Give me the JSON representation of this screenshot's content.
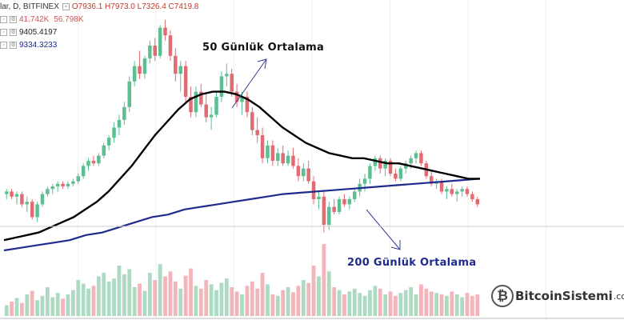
{
  "header": {
    "symbol": "lar, D, BITFINEX",
    "ohlc": "O7936.1  H7973.0  L7326.4  C7419.8",
    "volume_a": "41.742K",
    "volume_b": "56.798K",
    "ma50_value": "9405.4197",
    "ma200_value": "9334.3233"
  },
  "annotations": {
    "ma50_label": "50 Günlük Ortalama",
    "ma200_label": "200 Günlük Ortalama"
  },
  "logo": {
    "text": "BitcoinSistemi",
    "suffix": ".com"
  },
  "colors": {
    "up": "#5bbf92",
    "down": "#e06b73",
    "up_volume": "#9ed4b9",
    "down_volume": "#f0a8ae",
    "ma50": "#000000",
    "ma200": "#1f2b8c",
    "arrow": "#3a3f8f"
  },
  "chart_data": {
    "type": "candlestick",
    "candles": [
      [
        0.32,
        0.34,
        0.3,
        0.33
      ],
      [
        0.33,
        0.34,
        0.3,
        0.31
      ],
      [
        0.31,
        0.33,
        0.28,
        0.32
      ],
      [
        0.32,
        0.33,
        0.27,
        0.28
      ],
      [
        0.28,
        0.31,
        0.25,
        0.29
      ],
      [
        0.29,
        0.3,
        0.22,
        0.23
      ],
      [
        0.23,
        0.29,
        0.21,
        0.28
      ],
      [
        0.28,
        0.33,
        0.27,
        0.32
      ],
      [
        0.32,
        0.35,
        0.31,
        0.34
      ],
      [
        0.34,
        0.36,
        0.32,
        0.35
      ],
      [
        0.35,
        0.37,
        0.33,
        0.36
      ],
      [
        0.36,
        0.37,
        0.34,
        0.35
      ],
      [
        0.35,
        0.37,
        0.34,
        0.36
      ],
      [
        0.36,
        0.38,
        0.35,
        0.37
      ],
      [
        0.37,
        0.4,
        0.36,
        0.39
      ],
      [
        0.39,
        0.44,
        0.38,
        0.43
      ],
      [
        0.43,
        0.46,
        0.41,
        0.45
      ],
      [
        0.45,
        0.47,
        0.43,
        0.44
      ],
      [
        0.44,
        0.48,
        0.43,
        0.47
      ],
      [
        0.47,
        0.52,
        0.46,
        0.51
      ],
      [
        0.51,
        0.55,
        0.49,
        0.54
      ],
      [
        0.54,
        0.6,
        0.52,
        0.58
      ],
      [
        0.58,
        0.63,
        0.55,
        0.61
      ],
      [
        0.61,
        0.68,
        0.59,
        0.66
      ],
      [
        0.66,
        0.78,
        0.64,
        0.76
      ],
      [
        0.76,
        0.84,
        0.74,
        0.82
      ],
      [
        0.82,
        0.88,
        0.77,
        0.79
      ],
      [
        0.79,
        0.86,
        0.77,
        0.85
      ],
      [
        0.85,
        0.92,
        0.83,
        0.9
      ],
      [
        0.9,
        0.93,
        0.84,
        0.86
      ],
      [
        0.86,
        0.98,
        0.85,
        0.97
      ],
      [
        0.97,
        1.0,
        0.92,
        0.94
      ],
      [
        0.94,
        0.96,
        0.84,
        0.86
      ],
      [
        0.86,
        0.89,
        0.76,
        0.79
      ],
      [
        0.79,
        0.84,
        0.72,
        0.82
      ],
      [
        0.82,
        0.84,
        0.68,
        0.7
      ],
      [
        0.7,
        0.74,
        0.62,
        0.64
      ],
      [
        0.64,
        0.74,
        0.62,
        0.72
      ],
      [
        0.72,
        0.75,
        0.66,
        0.67
      ],
      [
        0.67,
        0.71,
        0.6,
        0.62
      ],
      [
        0.62,
        0.66,
        0.57,
        0.63
      ],
      [
        0.63,
        0.72,
        0.62,
        0.7
      ],
      [
        0.7,
        0.8,
        0.68,
        0.78
      ],
      [
        0.78,
        0.83,
        0.74,
        0.79
      ],
      [
        0.79,
        0.81,
        0.7,
        0.72
      ],
      [
        0.72,
        0.75,
        0.66,
        0.68
      ],
      [
        0.68,
        0.72,
        0.63,
        0.7
      ],
      [
        0.7,
        0.72,
        0.62,
        0.64
      ],
      [
        0.64,
        0.66,
        0.55,
        0.57
      ],
      [
        0.57,
        0.62,
        0.52,
        0.55
      ],
      [
        0.55,
        0.58,
        0.44,
        0.46
      ],
      [
        0.46,
        0.53,
        0.44,
        0.51
      ],
      [
        0.51,
        0.53,
        0.43,
        0.45
      ],
      [
        0.45,
        0.5,
        0.43,
        0.48
      ],
      [
        0.48,
        0.51,
        0.43,
        0.44
      ],
      [
        0.44,
        0.49,
        0.43,
        0.47
      ],
      [
        0.47,
        0.5,
        0.42,
        0.43
      ],
      [
        0.43,
        0.46,
        0.37,
        0.39
      ],
      [
        0.39,
        0.44,
        0.37,
        0.42
      ],
      [
        0.42,
        0.45,
        0.36,
        0.37
      ],
      [
        0.37,
        0.39,
        0.28,
        0.3
      ],
      [
        0.3,
        0.33,
        0.26,
        0.31
      ],
      [
        0.31,
        0.33,
        0.17,
        0.2
      ],
      [
        0.2,
        0.29,
        0.18,
        0.27
      ],
      [
        0.27,
        0.3,
        0.24,
        0.25
      ],
      [
        0.25,
        0.31,
        0.24,
        0.3
      ],
      [
        0.3,
        0.32,
        0.27,
        0.28
      ],
      [
        0.28,
        0.31,
        0.26,
        0.3
      ],
      [
        0.3,
        0.34,
        0.29,
        0.33
      ],
      [
        0.33,
        0.38,
        0.31,
        0.36
      ],
      [
        0.36,
        0.4,
        0.33,
        0.38
      ],
      [
        0.38,
        0.44,
        0.36,
        0.43
      ],
      [
        0.43,
        0.47,
        0.41,
        0.46
      ],
      [
        0.46,
        0.47,
        0.4,
        0.42
      ],
      [
        0.42,
        0.46,
        0.39,
        0.45
      ],
      [
        0.45,
        0.46,
        0.39,
        0.4
      ],
      [
        0.4,
        0.42,
        0.37,
        0.38
      ],
      [
        0.38,
        0.43,
        0.37,
        0.42
      ],
      [
        0.42,
        0.45,
        0.4,
        0.44
      ],
      [
        0.44,
        0.47,
        0.42,
        0.46
      ],
      [
        0.46,
        0.49,
        0.44,
        0.48
      ],
      [
        0.48,
        0.49,
        0.43,
        0.44
      ],
      [
        0.44,
        0.45,
        0.38,
        0.39
      ],
      [
        0.39,
        0.41,
        0.35,
        0.36
      ],
      [
        0.36,
        0.38,
        0.34,
        0.37
      ],
      [
        0.37,
        0.38,
        0.32,
        0.33
      ],
      [
        0.33,
        0.35,
        0.3,
        0.34
      ],
      [
        0.34,
        0.36,
        0.31,
        0.32
      ],
      [
        0.32,
        0.34,
        0.29,
        0.33
      ],
      [
        0.33,
        0.35,
        0.31,
        0.34
      ],
      [
        0.34,
        0.35,
        0.31,
        0.32
      ],
      [
        0.32,
        0.33,
        0.29,
        0.3
      ],
      [
        0.3,
        0.31,
        0.27,
        0.28
      ]
    ],
    "ma50": [
      0.14,
      0.15,
      0.16,
      0.17,
      0.19,
      0.21,
      0.23,
      0.26,
      0.29,
      0.33,
      0.38,
      0.43,
      0.49,
      0.55,
      0.6,
      0.65,
      0.69,
      0.71,
      0.72,
      0.72,
      0.71,
      0.69,
      0.66,
      0.62,
      0.58,
      0.55,
      0.52,
      0.5,
      0.48,
      0.47,
      0.46,
      0.46,
      0.45,
      0.44,
      0.44,
      0.43,
      0.42,
      0.41,
      0.4,
      0.39,
      0.38,
      0.38
    ],
    "ma200": [
      0.1,
      0.11,
      0.12,
      0.13,
      0.14,
      0.16,
      0.17,
      0.19,
      0.21,
      0.23,
      0.24,
      0.26,
      0.27,
      0.28,
      0.29,
      0.3,
      0.31,
      0.32,
      0.325,
      0.33,
      0.335,
      0.34,
      0.345,
      0.35,
      0.355,
      0.36,
      0.365,
      0.37,
      0.375,
      0.38
    ],
    "volume": [
      0.15,
      0.2,
      0.25,
      0.18,
      0.3,
      0.35,
      0.22,
      0.28,
      0.4,
      0.26,
      0.32,
      0.24,
      0.3,
      0.36,
      0.5,
      0.45,
      0.38,
      0.42,
      0.55,
      0.6,
      0.48,
      0.52,
      0.7,
      0.58,
      0.65,
      0.4,
      0.45,
      0.35,
      0.6,
      0.5,
      0.72,
      0.55,
      0.62,
      0.48,
      0.38,
      0.56,
      0.66,
      0.42,
      0.38,
      0.5,
      0.44,
      0.36,
      0.46,
      0.52,
      0.4,
      0.34,
      0.3,
      0.42,
      0.48,
      0.38,
      0.6,
      0.44,
      0.3,
      0.28,
      0.36,
      0.4,
      0.33,
      0.42,
      0.5,
      0.46,
      0.7,
      0.55,
      1.0,
      0.62,
      0.4,
      0.36,
      0.3,
      0.34,
      0.38,
      0.32,
      0.28,
      0.36,
      0.42,
      0.38,
      0.3,
      0.34,
      0.28,
      0.32,
      0.36,
      0.4,
      0.3,
      0.44,
      0.38,
      0.34,
      0.32,
      0.3,
      0.28,
      0.34,
      0.3,
      0.26,
      0.32,
      0.28,
      0.3
    ]
  }
}
